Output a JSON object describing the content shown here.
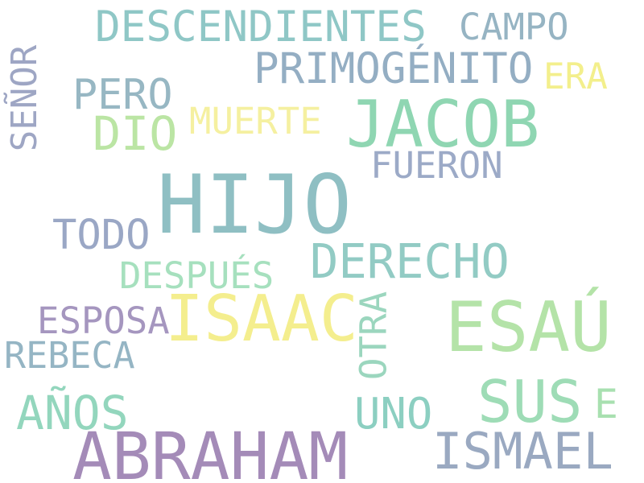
{
  "words": [
    {
      "text": "HIJO",
      "color": "#8fbfc3"
    },
    {
      "text": "ABRAHAM",
      "color": "#a48bb8"
    },
    {
      "text": "ESAÚ",
      "color": "#b4e3a8"
    },
    {
      "text": "ISAAC",
      "color": "#f4ee8e"
    },
    {
      "text": "JACOB",
      "color": "#8fd6b2"
    },
    {
      "text": "ISMAEL",
      "color": "#9aa9c1"
    },
    {
      "text": "SUS",
      "color": "#9edcb6"
    },
    {
      "text": "DESCENDIENTES",
      "color": "#8fc7c6"
    },
    {
      "text": "PRIMOGÉNITO",
      "color": "#94aec3"
    },
    {
      "text": "DERECHO",
      "color": "#92cbc4"
    },
    {
      "text": "AÑOS",
      "color": "#93d6bd"
    },
    {
      "text": "DIO",
      "color": "#bbe5a4"
    },
    {
      "text": "PERO",
      "color": "#97b7c3"
    },
    {
      "text": "TODO",
      "color": "#9aa7c5"
    },
    {
      "text": "UNO",
      "color": "#8ccfc1"
    },
    {
      "text": "FUERON",
      "color": "#9caac7"
    },
    {
      "text": "REBECA",
      "color": "#95b5c4"
    },
    {
      "text": "ESPOSA",
      "color": "#a596bf"
    },
    {
      "text": "DESPUÉS",
      "color": "#a6e0be"
    },
    {
      "text": "MUERTE",
      "color": "#f5f0a0"
    },
    {
      "text": "CAMPO",
      "color": "#96b4c3"
    },
    {
      "text": "ERA",
      "color": "#f3ef8c"
    },
    {
      "text": "E",
      "color": "#a8e0b0"
    },
    {
      "text": "SEÑOR",
      "color": "#9ea6c4"
    },
    {
      "text": "OTRA",
      "color": "#9bd6be"
    }
  ]
}
